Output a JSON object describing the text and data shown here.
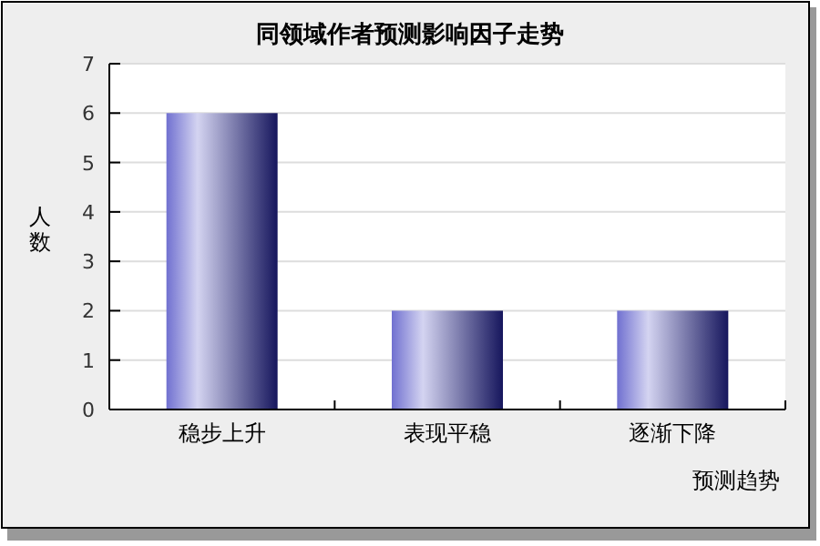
{
  "chart_data": {
    "type": "bar",
    "title": "同领域作者预测影响因子走势",
    "xlabel": "预测趋势",
    "ylabel": "人数",
    "categories": [
      "稳步上升",
      "表现平稳",
      "逐渐下降"
    ],
    "values": [
      6,
      2,
      2
    ],
    "color": "#7070d0",
    "ylim": [
      0,
      7
    ],
    "yticks": [
      0,
      1,
      2,
      3,
      4,
      5,
      6,
      7
    ],
    "grid": "y"
  }
}
